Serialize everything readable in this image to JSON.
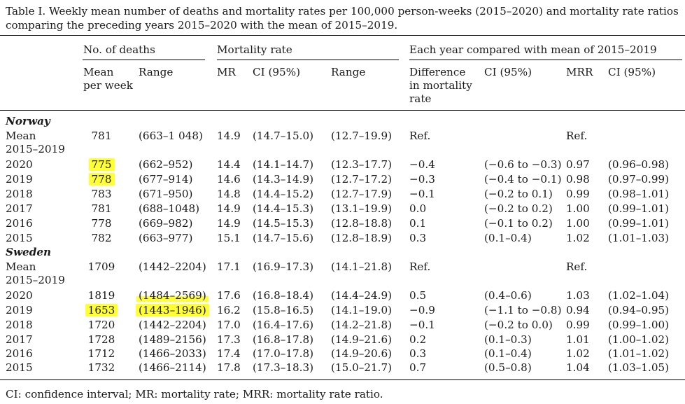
{
  "caption": "Table I. Weekly mean number of deaths and mortality rates per 100,000 person-weeks (2015–2020) and mortality rate ratios comparing the preceding years 2015–2020 with the mean of 2015–2019.",
  "header": {
    "group_deaths": "No. of deaths",
    "group_mortality": "Mortality rate",
    "group_compare": "Each year compared with mean of 2015–2019",
    "mean_per_week_1": "Mean",
    "mean_per_week_2": "per week",
    "range": "Range",
    "mr": "MR",
    "ci": "CI (95%)",
    "range2": "Range",
    "diff_1": "Difference",
    "diff_2": "in mortality",
    "diff_3": "rate",
    "ci2": "CI (95%)",
    "mrr": "MRR",
    "ci3": "CI (95%)"
  },
  "sections": [
    {
      "name": "Norway",
      "rows": [
        {
          "year": "Mean",
          "year2": "2015–2019",
          "mean": "781",
          "range": "(663–1 048)",
          "mr": "14.9",
          "ci": "(14.7–15.0)",
          "mr_range": "(12.7–19.9)",
          "diff": "Ref.",
          "ci2": "",
          "mrr": "Ref.",
          "ci3": ""
        },
        {
          "year": "2020",
          "mean": "775",
          "range": "(662–952)",
          "mr": "14.4",
          "ci": "(14.1–14.7)",
          "mr_range": "(12.3–17.7)",
          "diff": "−0.4",
          "ci2": "(−0.6 to −0.3)",
          "mrr": "0.97",
          "ci3": "(0.96–0.98)"
        },
        {
          "year": "2019",
          "mean": "778",
          "range": "(677–914)",
          "mr": "14.6",
          "ci": "(14.3–14.9)",
          "mr_range": "(12.7–17.2)",
          "diff": "−0.3",
          "ci2": "(−0.4 to −0.1)",
          "mrr": "0.98",
          "ci3": "(0.97–0.99)"
        },
        {
          "year": "2018",
          "mean": "783",
          "range": "(671–950)",
          "mr": "14.8",
          "ci": "(14.4–15.2)",
          "mr_range": "(12.7–17.9)",
          "diff": "−0.1",
          "ci2": "(−0.2 to 0.1)",
          "mrr": "0.99",
          "ci3": "(0.98–1.01)"
        },
        {
          "year": "2017",
          "mean": "781",
          "range": "(688–1048)",
          "mr": "14.9",
          "ci": "(14.4–15.3)",
          "mr_range": "(13.1–19.9)",
          "diff": "0.0",
          "ci2": "(−0.2 to 0.2)",
          "mrr": "1.00",
          "ci3": "(0.99–1.01)"
        },
        {
          "year": "2016",
          "mean": "778",
          "range": "(669–982)",
          "mr": "14.9",
          "ci": "(14.5–15.3)",
          "mr_range": "(12.8–18.8)",
          "diff": "0.1",
          "ci2": "(−0.1 to 0.2)",
          "mrr": "1.00",
          "ci3": "(0.99–1.01)"
        },
        {
          "year": "2015",
          "mean": "782",
          "range": "(663–977)",
          "mr": "15.1",
          "ci": "(14.7–15.6)",
          "mr_range": "(12.8–18.9)",
          "diff": "0.3",
          "ci2": "(0.1–0.4)",
          "mrr": "1.02",
          "ci3": "(1.01–1.03)"
        }
      ]
    },
    {
      "name": "Sweden",
      "rows": [
        {
          "year": "Mean",
          "year2": "2015–2019",
          "mean": "1709",
          "range": "(1442–2204)",
          "mr": "17.1",
          "ci": "(16.9–17.3)",
          "mr_range": "(14.1–21.8)",
          "diff": "Ref.",
          "ci2": "",
          "mrr": "Ref.",
          "ci3": ""
        },
        {
          "year": "2020",
          "mean": "1819",
          "range": "(1484–2569)",
          "mr": "17.6",
          "ci": "(16.8–18.4)",
          "mr_range": "(14.4–24.9)",
          "diff": "0.5",
          "ci2": "(0.4–0.6)",
          "mrr": "1.03",
          "ci3": "(1.02–1.04)"
        },
        {
          "year": "2019",
          "mean": "1653",
          "range": "(1443–1946)",
          "mr": "16.2",
          "ci": "(15.8–16.5)",
          "mr_range": "(14.1–19.0)",
          "diff": "−0.9",
          "ci2": "(−1.1 to −0.8)",
          "mrr": "0.94",
          "ci3": "(0.94–0.95)"
        },
        {
          "year": "2018",
          "mean": "1720",
          "range": "(1442–2204)",
          "mr": "17.0",
          "ci": "(16.4–17.6)",
          "mr_range": "(14.2–21.8)",
          "diff": "−0.1",
          "ci2": "(−0.2 to 0.0)",
          "mrr": "0.99",
          "ci3": "(0.99–1.00)"
        },
        {
          "year": "2017",
          "mean": "1728",
          "range": "(1489–2156)",
          "mr": "17.3",
          "ci": "(16.8–17.8)",
          "mr_range": "(14.9–21.6)",
          "diff": "0.2",
          "ci2": "(0.1–0.3)",
          "mrr": "1.01",
          "ci3": "(1.00–1.02)"
        },
        {
          "year": "2016",
          "mean": "1712",
          "range": "(1466–2033)",
          "mr": "17.4",
          "ci": "(17.0–17.8)",
          "mr_range": "(14.9–20.6)",
          "diff": "0.3",
          "ci2": "(0.1–0.4)",
          "mrr": "1.02",
          "ci3": "(1.01–1.02)"
        },
        {
          "year": "2015",
          "mean": "1732",
          "range": "(1466–2114)",
          "mr": "17.8",
          "ci": "(17.3–18.3)",
          "mr_range": "(15.0–21.7)",
          "diff": "0.7",
          "ci2": "(0.5–0.8)",
          "mrr": "1.04",
          "ci3": "(1.03–1.05)"
        }
      ]
    }
  ],
  "footnote": "CI: confidence interval; MR: mortality rate; MRR: mortality rate ratio.",
  "highlight_color": "#ffff33"
}
